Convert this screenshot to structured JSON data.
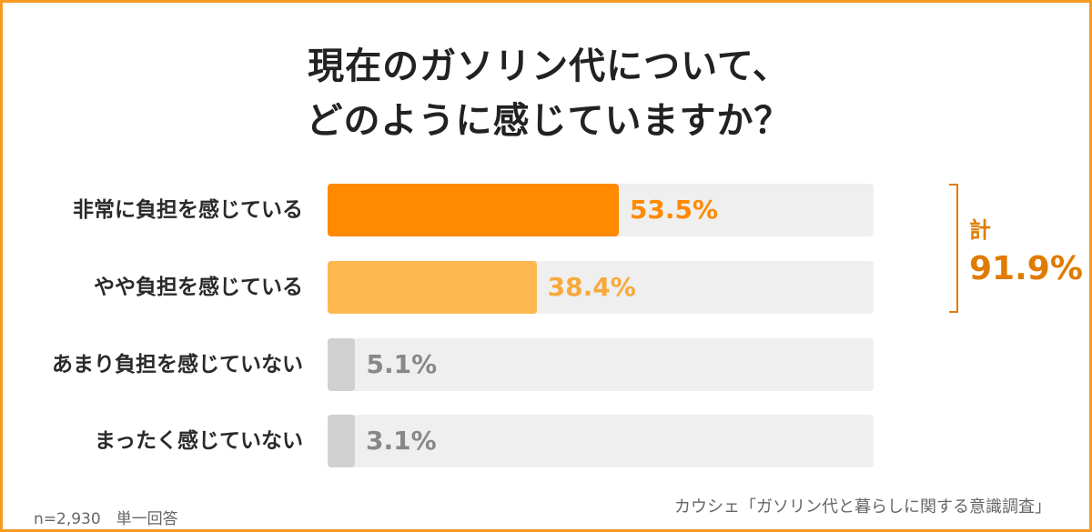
{
  "chart_data": {
    "type": "bar",
    "orientation": "horizontal",
    "title": [
      "現在のガソリン代について、",
      "どのように感じていますか？"
    ],
    "categories": [
      "非常に負担を感じている",
      "やや負担を感じている",
      "あまり負担を感じていない",
      "まったく感じていない"
    ],
    "values": [
      53.5,
      38.4,
      5.1,
      3.1
    ],
    "value_labels": [
      "53.5%",
      "38.4%",
      "5.1%",
      "3.1%"
    ],
    "xlim": [
      0,
      100
    ],
    "grid": false,
    "legend": "none",
    "bracket_total": {
      "label": "計",
      "value": "91.9%",
      "covers": [
        0,
        1
      ]
    }
  },
  "colors": {
    "border": "#f59a23",
    "bar_fills": [
      "#ff8a00",
      "#fdb84f",
      "#d0d0d0",
      "#d0d0d0"
    ],
    "value_text": [
      "#ff8a00",
      "#f7a93a",
      "#888888",
      "#888888"
    ],
    "track": "#efefef",
    "total": "#e07b00"
  },
  "footer": {
    "note": "n=2,930　単一回答",
    "source": "カウシェ「ガソリン代と暮らしに関する意識調査」"
  }
}
